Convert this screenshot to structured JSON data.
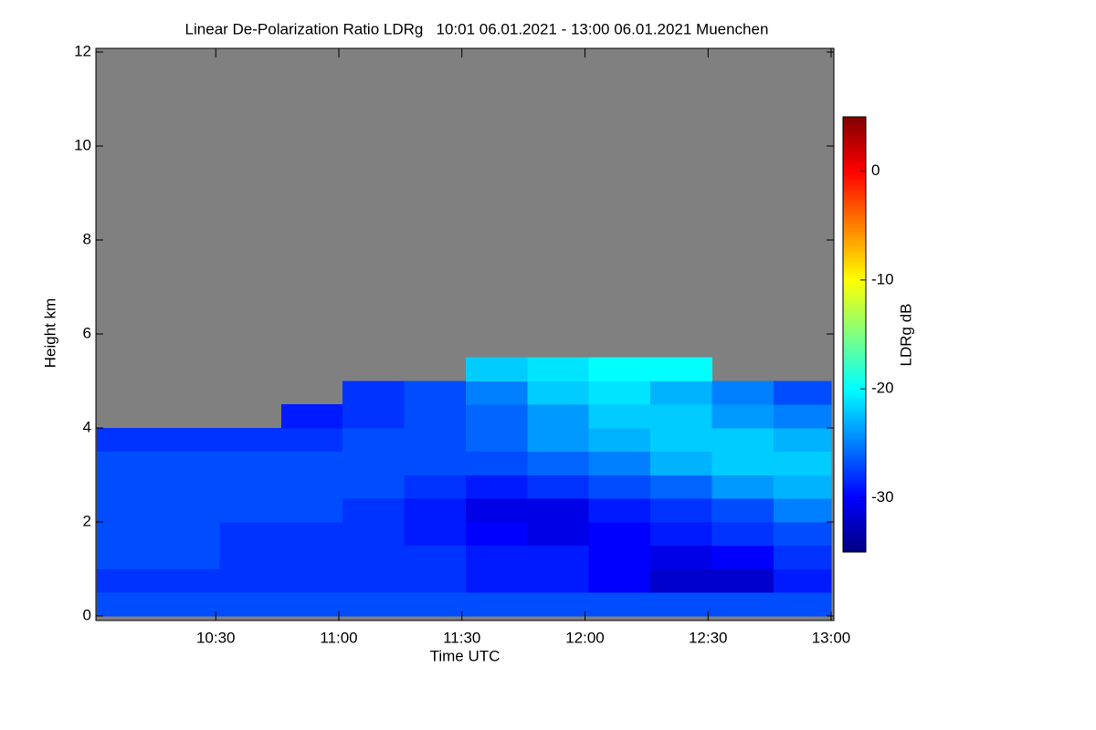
{
  "chart_data": {
    "type": "heatmap",
    "title": "Linear De-Polarization Ratio LDRg   10:01 06.01.2021 - 13:00 06.01.2021 Muenchen",
    "x_label": "Time UTC",
    "y_label": "Height km",
    "colorbar_label": "LDRg dB",
    "xlim": [
      601,
      780
    ],
    "xticks": [
      {
        "value": 630,
        "label": "10:30"
      },
      {
        "value": 660,
        "label": "11:00"
      },
      {
        "value": 690,
        "label": "11:30"
      },
      {
        "value": 720,
        "label": "12:00"
      },
      {
        "value": 750,
        "label": "12:30"
      },
      {
        "value": 780,
        "label": "13:00"
      }
    ],
    "ylim": [
      0,
      12
    ],
    "yticks": [
      0,
      2,
      4,
      6,
      8,
      10,
      12
    ],
    "x_bins": [
      601,
      616,
      631,
      646,
      661,
      676,
      691,
      706,
      721,
      736,
      751,
      766,
      780
    ],
    "y_bins": [
      0,
      0.5,
      1,
      1.5,
      2,
      2.5,
      3,
      3.5,
      4,
      4.5,
      5,
      5.5,
      6
    ],
    "values": [
      [
        -27,
        -27,
        -27,
        -27,
        -27,
        -27,
        -27,
        -27,
        -27,
        -27,
        -27,
        -27
      ],
      [
        -28,
        -28,
        -28,
        -28,
        -28,
        -28,
        -29,
        -29,
        -30,
        -32,
        -32,
        -29
      ],
      [
        -27,
        -27,
        -28,
        -28,
        -28,
        -28,
        -29,
        -29,
        -30,
        -31,
        -30,
        -28
      ],
      [
        -27,
        -27,
        -28,
        -28,
        -28,
        -29,
        -30,
        -31,
        -30,
        -29,
        -28,
        -27
      ],
      [
        -27,
        -27,
        -27,
        -27,
        -28,
        -29,
        -31,
        -31,
        -29,
        -28,
        -27,
        -25
      ],
      [
        -27,
        -27,
        -27,
        -27,
        -27,
        -28,
        -29,
        -28,
        -27,
        -26,
        -24,
        -23
      ],
      [
        -27,
        -27,
        -27,
        -27,
        -27,
        -27,
        -27,
        -26,
        -25,
        -23,
        -22,
        -22
      ],
      [
        -28,
        -28,
        -28,
        -28,
        -27,
        -27,
        -26,
        -24,
        -23,
        -22,
        -22,
        -23
      ],
      [
        null,
        null,
        null,
        -29,
        -28,
        -27,
        -26,
        -24,
        -22,
        -22,
        -24,
        -25
      ],
      [
        null,
        null,
        null,
        null,
        -28,
        -27,
        -25,
        -22,
        -21,
        -23,
        -25,
        -27
      ],
      [
        null,
        null,
        null,
        null,
        null,
        null,
        -22,
        -21,
        -20,
        -20,
        null,
        null
      ],
      [
        null,
        null,
        null,
        null,
        null,
        null,
        null,
        null,
        null,
        null,
        null,
        null
      ]
    ],
    "zlim": [
      -35,
      5
    ],
    "zticks": [
      0,
      -10,
      -20,
      -30
    ],
    "colormap": "jet",
    "no_data_color": "#808080"
  }
}
